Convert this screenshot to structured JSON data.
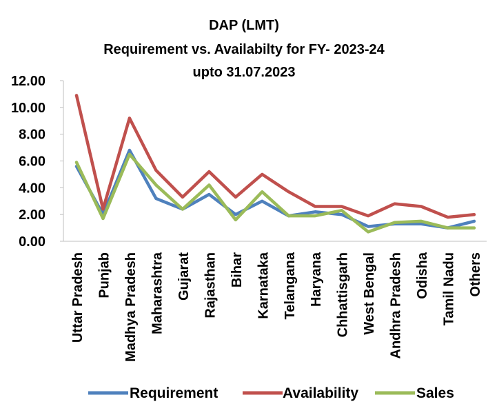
{
  "chart_data": {
    "type": "line",
    "title": [
      "DAP (LMT)",
      "Requirement vs. Availabilty for FY- 2023-24",
      "upto 31.07.2023"
    ],
    "categories": [
      "Uttar Pradesh",
      "Punjab",
      "Madhya Pradesh",
      "Maharashtra",
      "Gujarat",
      "Rajasthan",
      "Bihar",
      "Karnataka",
      "Telangana",
      "Haryana",
      "Chhattisgarh",
      "West Bengal",
      "Andhra Pradesh",
      "Odisha",
      "Tamil Nadu",
      "Others"
    ],
    "series": [
      {
        "name": "Requirement",
        "color": "#4F81BD",
        "values": [
          5.6,
          2.0,
          6.8,
          3.2,
          2.4,
          3.5,
          2.0,
          3.0,
          1.9,
          2.2,
          2.0,
          1.1,
          1.3,
          1.3,
          1.0,
          1.5
        ]
      },
      {
        "name": "Availability",
        "color": "#C0504D",
        "values": [
          10.9,
          2.4,
          9.2,
          5.3,
          3.3,
          5.2,
          3.3,
          5.0,
          3.7,
          2.6,
          2.6,
          1.9,
          2.8,
          2.6,
          1.8,
          2.0
        ]
      },
      {
        "name": "Sales",
        "color": "#9BBB59",
        "values": [
          5.9,
          1.7,
          6.5,
          4.2,
          2.4,
          4.2,
          1.6,
          3.7,
          1.9,
          1.9,
          2.3,
          0.7,
          1.4,
          1.5,
          1.0,
          1.0
        ]
      }
    ],
    "y_ticks": [
      "0.00",
      "2.00",
      "4.00",
      "6.00",
      "8.00",
      "10.00",
      "12.00"
    ],
    "ylim": [
      0,
      12
    ],
    "grid": false,
    "legend": "bottom"
  }
}
